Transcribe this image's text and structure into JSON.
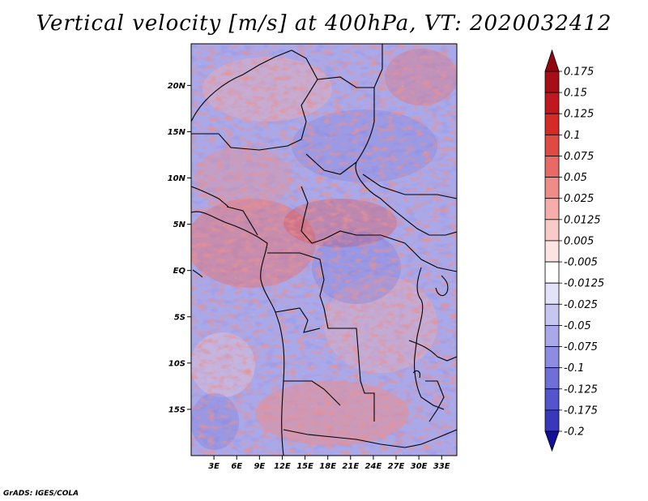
{
  "title": "Vertical velocity [m/s] at 400hPa, VT: 2020032412",
  "credit": "GrADS: IGES/COLA",
  "map": {
    "lon_min": 0,
    "lon_max": 35,
    "lat_min": -20,
    "lat_max": 24.5,
    "lat_ticks": [
      {
        "value": 20,
        "label": "20N"
      },
      {
        "value": 15,
        "label": "15N"
      },
      {
        "value": 10,
        "label": "10N"
      },
      {
        "value": 5,
        "label": "5N"
      },
      {
        "value": 0,
        "label": "EQ"
      },
      {
        "value": -5,
        "label": "5S"
      },
      {
        "value": -10,
        "label": "10S"
      },
      {
        "value": -15,
        "label": "15S"
      }
    ],
    "lon_ticks": [
      {
        "value": 3,
        "label": "3E"
      },
      {
        "value": 6,
        "label": "6E"
      },
      {
        "value": 9,
        "label": "9E"
      },
      {
        "value": 12,
        "label": "12E"
      },
      {
        "value": 15,
        "label": "15E"
      },
      {
        "value": 18,
        "label": "18E"
      },
      {
        "value": 21,
        "label": "21E"
      },
      {
        "value": 24,
        "label": "24E"
      },
      {
        "value": 27,
        "label": "27E"
      },
      {
        "value": 30,
        "label": "30E"
      },
      {
        "value": 33,
        "label": "33E"
      }
    ]
  },
  "colorbar": {
    "levels": [
      {
        "label": "0.175",
        "color": "#a50f15"
      },
      {
        "label": "0.15",
        "color": "#c0181e"
      },
      {
        "label": "0.125",
        "color": "#d42a28"
      },
      {
        "label": "0.1",
        "color": "#e04a45"
      },
      {
        "label": "0.075",
        "color": "#e86a66"
      },
      {
        "label": "0.05",
        "color": "#ef8c88"
      },
      {
        "label": "0.025",
        "color": "#f5aeaa"
      },
      {
        "label": "0.0125",
        "color": "#f9cbc8"
      },
      {
        "label": "0.005",
        "color": "#fce4e2"
      },
      {
        "label": "-0.005",
        "color": "#ffffff"
      },
      {
        "label": "-0.0125",
        "color": "#e2e2f8"
      },
      {
        "label": "-0.025",
        "color": "#c6c6f1"
      },
      {
        "label": "-0.05",
        "color": "#a9a9ea"
      },
      {
        "label": "-0.075",
        "color": "#8c8ce2"
      },
      {
        "label": "-0.1",
        "color": "#6f6fd8"
      },
      {
        "label": "-0.125",
        "color": "#5454cc"
      },
      {
        "label": "-0.175",
        "color": "#3838bd"
      },
      {
        "label": "-0.2",
        "color": "#2121a8"
      }
    ],
    "top_arrow_color": "#8e0a10",
    "bottom_arrow_color": "#10109a"
  }
}
